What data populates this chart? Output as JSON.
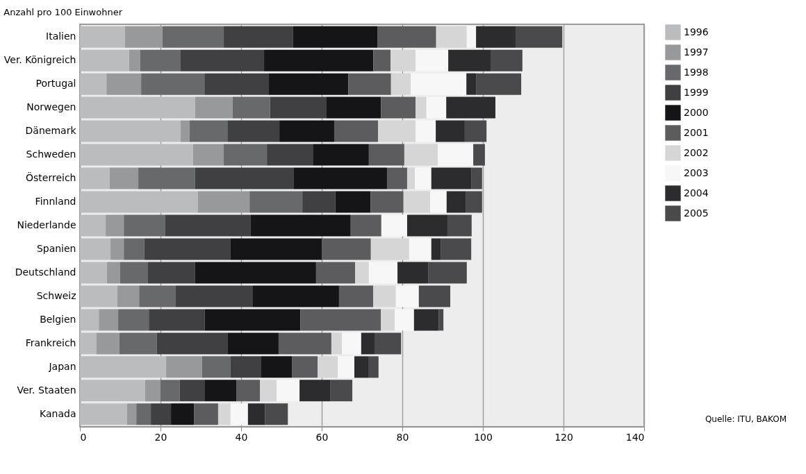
{
  "chart_data": {
    "type": "bar",
    "orientation": "horizontal",
    "stacked": true,
    "title": "Anzahl pro 100 Einwohner",
    "categories": [
      "Italien",
      "Ver. Königreich",
      "Portugal",
      "Norwegen",
      "Dänemark",
      "Schweden",
      "Österreich",
      "Finnland",
      "Niederlande",
      "Spanien",
      "Deutschland",
      "Schweiz",
      "Belgien",
      "Frankreich",
      "Japan",
      "Ver. Staaten",
      "Kanada"
    ],
    "series": [
      {
        "name": "1996",
        "color": "#bbbcbe",
        "values": [
          11.2,
          12.2,
          6.6,
          28.6,
          25.0,
          28.1,
          7.4,
          29.3,
          6.4,
          7.6,
          6.7,
          9.3,
          4.7,
          4.1,
          21.4,
          16.2,
          11.7
        ]
      },
      {
        "name": "1997",
        "color": "#98999b",
        "values": [
          9.3,
          2.8,
          8.6,
          9.3,
          2.2,
          7.6,
          7.1,
          12.8,
          4.5,
          3.3,
          3.3,
          5.4,
          4.8,
          5.7,
          8.9,
          3.8,
          2.3
        ]
      },
      {
        "name": "1998",
        "color": "#68696b",
        "values": [
          15.2,
          10.0,
          15.7,
          9.3,
          9.4,
          10.7,
          14.1,
          13.1,
          10.3,
          5.1,
          6.9,
          9.1,
          7.6,
          9.3,
          7.1,
          4.8,
          3.6
        ]
      },
      {
        "name": "1999",
        "color": "#404042",
        "values": [
          17.2,
          20.7,
          16.0,
          14.0,
          12.9,
          11.4,
          24.5,
          8.2,
          21.2,
          21.4,
          11.7,
          19.0,
          13.9,
          17.5,
          7.6,
          6.1,
          5.0
        ]
      },
      {
        "name": "2000",
        "color": "#151517",
        "values": [
          20.9,
          27.1,
          19.7,
          13.5,
          13.6,
          13.9,
          23.1,
          8.7,
          24.8,
          22.6,
          30.0,
          21.5,
          23.7,
          12.7,
          7.6,
          7.9,
          5.7
        ]
      },
      {
        "name": "2001",
        "color": "#5c5c5e",
        "values": [
          14.6,
          4.3,
          10.6,
          8.6,
          10.9,
          8.8,
          5.0,
          8.2,
          7.6,
          12.2,
          9.7,
          8.5,
          20.0,
          13.1,
          6.4,
          5.9,
          6.0
        ]
      },
      {
        "name": "2002",
        "color": "#d6d6d6",
        "values": [
          7.6,
          6.2,
          4.9,
          2.7,
          9.3,
          8.3,
          1.9,
          6.6,
          0,
          9.5,
          3.4,
          5.6,
          3.4,
          2.6,
          5.0,
          4.1,
          3.1
        ]
      },
      {
        "name": "2003",
        "color": "#f7f7f7",
        "values": [
          2.3,
          8.1,
          13.8,
          4.9,
          5.0,
          8.8,
          4.1,
          4.1,
          6.4,
          5.5,
          7.1,
          5.7,
          4.8,
          4.8,
          4.1,
          5.7,
          4.3
        ]
      },
      {
        "name": "2004",
        "color": "#2c2c2e",
        "values": [
          9.8,
          10.5,
          2.5,
          12.2,
          7.2,
          0,
          10.0,
          4.7,
          10.0,
          2.3,
          7.6,
          0,
          6.1,
          3.3,
          3.6,
          7.7,
          4.2
        ]
      },
      {
        "name": "2005",
        "color": "#4a4a4c",
        "values": [
          11.6,
          7.9,
          11.1,
          0,
          5.4,
          2.9,
          2.6,
          4.1,
          6.0,
          7.6,
          9.6,
          7.8,
          1.2,
          6.6,
          2.4,
          5.4,
          5.7
        ]
      }
    ],
    "xlim": [
      0,
      140
    ],
    "xticks": [
      0,
      20,
      40,
      60,
      80,
      100,
      120,
      140
    ],
    "grid": "x",
    "legend": "right",
    "annotations": [
      "Quelle: ITU, BAKOM"
    ]
  }
}
